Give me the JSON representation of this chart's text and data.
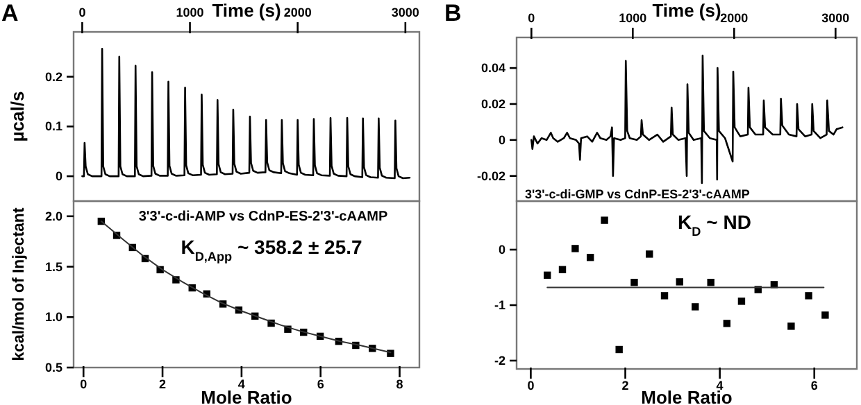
{
  "chart_data": [
    {
      "type": "line",
      "title": "A",
      "xlabel": "Time (s)",
      "ylabel": "µcal/s",
      "xlim": [
        -80,
        3130
      ],
      "xticks": [
        0,
        1000,
        2000,
        3000
      ],
      "ylim": [
        -0.05,
        0.29
      ],
      "yticks": [
        0,
        0.1,
        0.2
      ],
      "series": [
        {
          "color": "#000000",
          "x": [
            0,
            16,
            22,
            32,
            52,
            92,
            179,
            185,
            195,
            215,
            255,
            338,
            344,
            354,
            374,
            414,
            489,
            495,
            505,
            525,
            565,
            643,
            649,
            659,
            679,
            719,
            794,
            800,
            810,
            830,
            870,
            949,
            955,
            965,
            985,
            1025,
            1103,
            1109,
            1119,
            1139,
            1179,
            1250,
            1256,
            1266,
            1286,
            1326,
            1396,
            1402,
            1412,
            1432,
            1472,
            1551,
            1557,
            1567,
            1587,
            1627,
            1701,
            1707,
            1717,
            1737,
            1777,
            1847,
            1853,
            1863,
            1883,
            1923,
            1994,
            2000,
            2010,
            2030,
            2070,
            2144,
            2150,
            2160,
            2180,
            2220,
            2299,
            2305,
            2315,
            2335,
            2375,
            2454,
            2460,
            2470,
            2490,
            2530,
            2600,
            2606,
            2616,
            2636,
            2676,
            2746,
            2752,
            2762,
            2782,
            2822,
            2901,
            2907,
            2917,
            2937,
            2977,
            3040
          ],
          "values": [
            0,
            0,
            0.067,
            0.02,
            0.004,
            0,
            0,
            0.256,
            0.02,
            0.004,
            0,
            0,
            0.24,
            0.02,
            0.004,
            0,
            0,
            0.222,
            0.02,
            0.004,
            0,
            0.001,
            0.209,
            0.021,
            0.005,
            0.001,
            0.001,
            0.19,
            0.021,
            0.005,
            0.001,
            0.002,
            0.178,
            0.022,
            0.006,
            0.002,
            0.003,
            0.164,
            0.023,
            0.007,
            0.003,
            0.004,
            0.153,
            0.024,
            0.008,
            0.004,
            0.005,
            0.134,
            0.025,
            0.009,
            0.005,
            0.007,
            0.12,
            0.027,
            0.011,
            0.007,
            0.008,
            0.113,
            0.028,
            0.012,
            0.008,
            0.006,
            0.113,
            0.026,
            0.01,
            0.006,
            0.003,
            0.113,
            0.023,
            0.007,
            0.003,
            0.002,
            0.115,
            0.022,
            0.006,
            0.002,
            0.001,
            0.117,
            0.021,
            0.005,
            0.001,
            0,
            0.117,
            0.02,
            0.004,
            0,
            -0.002,
            0.116,
            0.018,
            0.002,
            -0.002,
            -0.003,
            0.116,
            0.017,
            0.001,
            -0.003,
            -0.004,
            0.112,
            0.016,
            0,
            -0.004,
            -0.003
          ]
        }
      ]
    },
    {
      "type": "scatter",
      "marker": "square",
      "xlabel": "Mole Ratio",
      "ylabel": "kcal/mol of Injectant",
      "xlim": [
        -0.25,
        8.5
      ],
      "xticks": [
        0,
        2,
        4,
        6,
        8
      ],
      "ylim": [
        0.5,
        2.15
      ],
      "yticks": [
        {
          "value": 0.5,
          "label": "0.5"
        },
        {
          "value": 1,
          "label": "1.0"
        },
        {
          "value": 1.5,
          "label": "1.5"
        },
        {
          "value": 2,
          "label": "2.0"
        }
      ],
      "annotations": [
        "3'3'-c-di-AMP vs CdnP-ES-2'3'-cAAMP",
        "K$_{D,App}$ ~ 358.2 ± 25.7"
      ],
      "series": [
        {
          "color": "#000000",
          "x": [
            0.45,
            0.84,
            1.24,
            1.56,
            1.94,
            2.34,
            2.75,
            3.12,
            3.53,
            3.93,
            4.34,
            4.75,
            5.17,
            5.57,
            5.99,
            6.46,
            6.89,
            7.31,
            7.77
          ],
          "values": [
            1.95,
            1.81,
            1.69,
            1.58,
            1.47,
            1.37,
            1.29,
            1.23,
            1.13,
            1.07,
            1.01,
            0.94,
            0.88,
            0.85,
            0.81,
            0.76,
            0.72,
            0.69,
            0.64
          ]
        },
        {
          "type": "line",
          "marker": "none",
          "color": "#333333",
          "x": [
            0.45,
            1,
            1.5,
            2,
            2.5,
            3,
            3.5,
            4,
            4.5,
            5,
            5.5,
            6,
            6.5,
            7,
            7.77
          ],
          "values": [
            1.95,
            1.77,
            1.61,
            1.47,
            1.35,
            1.24,
            1.14,
            1.06,
            0.99,
            0.92,
            0.86,
            0.81,
            0.76,
            0.72,
            0.65
          ]
        }
      ]
    },
    {
      "type": "line",
      "title": "B",
      "xlabel": "Time (s)",
      "xlim": [
        -146,
        3210
      ],
      "xticks": [
        0,
        1000,
        2000,
        3000
      ],
      "ylim": [
        -0.034,
        0.057
      ],
      "yticks": [
        -0.02,
        0,
        0.02,
        0.04
      ],
      "annotations": [
        "3'3'-c-di-GMP vs CdnP-ES-2'3'-cAAMP"
      ],
      "series": [
        {
          "color": "#000000",
          "x": [
            0,
            10,
            25,
            60,
            100,
            150,
            192,
            215,
            260,
            320,
            352,
            380,
            440,
            470,
            479,
            490,
            550,
            600,
            648,
            680,
            740,
            780,
            795,
            805,
            815,
            880,
            925,
            931,
            945,
            970,
            1040,
            1080,
            1087,
            1100,
            1160,
            1242,
            1300,
            1376,
            1383,
            1395,
            1450,
            1520,
            1532,
            1539,
            1552,
            1600,
            1675,
            1682,
            1689,
            1702,
            1760,
            1828,
            1832,
            1836,
            1850,
            1910,
            1985,
            1991,
            2005,
            2060,
            2135,
            2141,
            2155,
            2210,
            2286,
            2292,
            2305,
            2380,
            2455,
            2461,
            2475,
            2540,
            2615,
            2621,
            2635,
            2700,
            2764,
            2770,
            2784,
            2850,
            2912,
            2918,
            2935,
            2980,
            3010,
            3068
          ],
          "values": [
            0,
            -0.005,
            0.002,
            -0.002,
            0.001,
            0,
            0.004,
            0.001,
            -0.001,
            0.001,
            0.004,
            0.001,
            0,
            -0.002,
            -0.011,
            0.001,
            0.002,
            -0.001,
            0.004,
            0.001,
            0,
            0.002,
            0.007,
            -0.02,
            0.001,
            0,
            0.001,
            0.044,
            0.005,
            0.001,
            0,
            0.002,
            0.011,
            0.003,
            0,
            0.003,
            -0.001,
            0.002,
            0.018,
            0.003,
            0,
            0.001,
            -0.02,
            0.031,
            0.004,
            0,
            0.001,
            -0.024,
            0.047,
            0.005,
            0.001,
            0,
            -0.022,
            0.04,
            0.005,
            0.001,
            -0.012,
            0.038,
            0.007,
            0.002,
            0.003,
            0.029,
            0.007,
            0.003,
            0.003,
            0.022,
            0.007,
            0.003,
            0.003,
            0.023,
            0.008,
            0.003,
            0.002,
            0.02,
            0.006,
            0.002,
            0.003,
            0.02,
            0.005,
            0.001,
            0.003,
            0.022,
            0.005,
            0.003,
            0.006,
            0.007
          ]
        }
      ]
    },
    {
      "type": "scatter",
      "marker": "square",
      "xlabel": "Mole Ratio",
      "xlim": [
        -0.3,
        6.9
      ],
      "xticks": [
        0,
        2,
        4,
        6
      ],
      "ylim": [
        -2.15,
        0.875
      ],
      "yticks": [
        -2,
        -1,
        0
      ],
      "annotations": [
        "K$_{D}$ ~ ND"
      ],
      "series": [
        {
          "color": "#000000",
          "x": [
            0.35,
            0.67,
            0.94,
            1.26,
            1.56,
            1.87,
            2.19,
            2.51,
            2.83,
            3.15,
            3.48,
            3.81,
            4.15,
            4.46,
            4.81,
            5.15,
            5.51,
            5.88,
            6.23
          ],
          "values": [
            -0.46,
            -0.36,
            0.02,
            -0.14,
            0.53,
            -1.8,
            -0.59,
            -0.08,
            -0.83,
            -0.58,
            -1.03,
            -0.59,
            -1.33,
            -0.93,
            -0.72,
            -0.63,
            -1.38,
            -0.83,
            -1.18
          ]
        },
        {
          "type": "line",
          "marker": "none",
          "color": "#333333",
          "x": [
            0.35,
            6.2
          ],
          "values": [
            -0.68,
            -0.68
          ]
        }
      ]
    }
  ]
}
